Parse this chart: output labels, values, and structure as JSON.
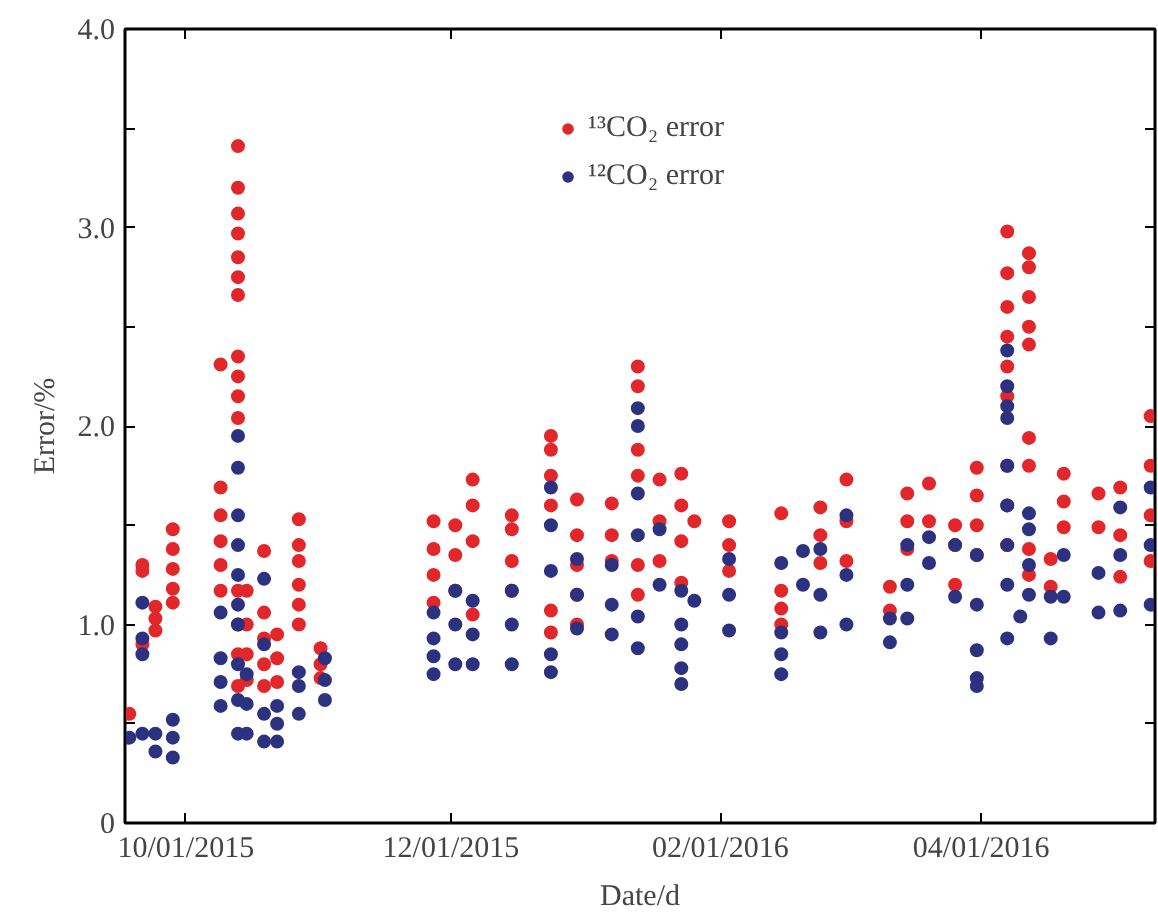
{
  "chart_data": {
    "type": "scatter",
    "xlabel": "Date/d",
    "ylabel": "Error/%",
    "marker": "circle",
    "grid": false,
    "legend": "top",
    "xlim": [
      "2015-09-17",
      "2016-05-11"
    ],
    "ylim": [
      0,
      4.0
    ],
    "xticks": [
      {
        "value": "2015-10-01",
        "label": "10/01/2015"
      },
      {
        "value": "2015-12-01",
        "label": "12/01/2015"
      },
      {
        "value": "2016-02-01",
        "label": "02/01/2016"
      },
      {
        "value": "2016-04-01",
        "label": "04/01/2016"
      }
    ],
    "yticks": [
      0,
      {
        "value": 0.5,
        "label": null
      },
      {
        "value": 1,
        "label": "1.0"
      },
      {
        "value": 1.5,
        "label": null
      },
      {
        "value": 2,
        "label": "2.0"
      },
      {
        "value": 2.5,
        "label": null
      },
      {
        "value": 3,
        "label": "3.0"
      },
      {
        "value": 3.5,
        "label": null
      },
      {
        "value": 4,
        "label": "4.0"
      }
    ],
    "series": [
      {
        "name": "¹³CO₂ error",
        "color": "#e2272b",
        "x": [
          "2015-09-18",
          "2015-09-21",
          "2015-09-21",
          "2015-09-21",
          "2015-09-24",
          "2015-09-24",
          "2015-09-24",
          "2015-09-28",
          "2015-09-28",
          "2015-09-28",
          "2015-09-28",
          "2015-09-28",
          "2015-10-09",
          "2015-10-09",
          "2015-10-09",
          "2015-10-09",
          "2015-10-09",
          "2015-10-09",
          "2015-10-13",
          "2015-10-13",
          "2015-10-13",
          "2015-10-13",
          "2015-10-13",
          "2015-10-13",
          "2015-10-13",
          "2015-10-13",
          "2015-10-13",
          "2015-10-13",
          "2015-10-13",
          "2015-10-13",
          "2015-10-13",
          "2015-10-13",
          "2015-10-13",
          "2015-10-15",
          "2015-10-15",
          "2015-10-15",
          "2015-10-15",
          "2015-10-19",
          "2015-10-19",
          "2015-10-19",
          "2015-10-19",
          "2015-10-19",
          "2015-10-22",
          "2015-10-22",
          "2015-10-22",
          "2015-10-27",
          "2015-10-27",
          "2015-10-27",
          "2015-10-27",
          "2015-10-27",
          "2015-10-27",
          "2015-11-01",
          "2015-11-01",
          "2015-11-01",
          "2015-11-27",
          "2015-11-27",
          "2015-11-27",
          "2015-11-27",
          "2015-12-02",
          "2015-12-02",
          "2015-12-02",
          "2015-12-06",
          "2015-12-06",
          "2015-12-06",
          "2015-12-06",
          "2015-12-15",
          "2015-12-15",
          "2015-12-15",
          "2015-12-15",
          "2015-12-24",
          "2015-12-24",
          "2015-12-24",
          "2015-12-24",
          "2015-12-24",
          "2015-12-24",
          "2015-12-30",
          "2015-12-30",
          "2015-12-30",
          "2015-12-30",
          "2015-12-30",
          "2016-01-07",
          "2016-01-07",
          "2016-01-07",
          "2016-01-13",
          "2016-01-13",
          "2016-01-13",
          "2016-01-13",
          "2016-01-13",
          "2016-01-13",
          "2016-01-18",
          "2016-01-18",
          "2016-01-18",
          "2016-01-23",
          "2016-01-23",
          "2016-01-23",
          "2016-01-23",
          "2016-01-26",
          "2016-02-03",
          "2016-02-03",
          "2016-02-03",
          "2016-02-15",
          "2016-02-15",
          "2016-02-15",
          "2016-02-15",
          "2016-02-24",
          "2016-02-24",
          "2016-02-24",
          "2016-03-01",
          "2016-03-01",
          "2016-03-01",
          "2016-03-11",
          "2016-03-11",
          "2016-03-15",
          "2016-03-15",
          "2016-03-15",
          "2016-03-20",
          "2016-03-20",
          "2016-03-26",
          "2016-03-26",
          "2016-03-26",
          "2016-03-31",
          "2016-03-31",
          "2016-03-31",
          "2016-03-31",
          "2016-04-07",
          "2016-04-07",
          "2016-04-07",
          "2016-04-07",
          "2016-04-07",
          "2016-04-07",
          "2016-04-07",
          "2016-04-07",
          "2016-04-07",
          "2016-04-12",
          "2016-04-12",
          "2016-04-12",
          "2016-04-12",
          "2016-04-12",
          "2016-04-12",
          "2016-04-12",
          "2016-04-12",
          "2016-04-12",
          "2016-04-17",
          "2016-04-17",
          "2016-04-20",
          "2016-04-20",
          "2016-04-20",
          "2016-04-28",
          "2016-04-28",
          "2016-05-03",
          "2016-05-03",
          "2016-05-03",
          "2016-05-10",
          "2016-05-10",
          "2016-05-10",
          "2016-05-10"
        ],
        "values": [
          0.55,
          1.3,
          1.27,
          0.9,
          1.09,
          1.03,
          0.97,
          1.48,
          1.38,
          1.28,
          1.18,
          1.11,
          2.31,
          1.69,
          1.55,
          1.42,
          1.3,
          1.17,
          3.41,
          3.2,
          3.07,
          2.97,
          2.85,
          2.75,
          2.66,
          2.35,
          2.25,
          2.15,
          2.04,
          1.17,
          1.0,
          0.85,
          0.69,
          1.17,
          1.0,
          0.85,
          0.72,
          1.37,
          1.06,
          0.93,
          0.8,
          0.69,
          0.95,
          0.83,
          0.71,
          1.53,
          1.4,
          1.32,
          1.2,
          1.1,
          1.0,
          0.88,
          0.8,
          0.73,
          1.52,
          1.38,
          1.25,
          1.11,
          1.5,
          1.35,
          1.17,
          1.73,
          1.6,
          1.42,
          1.05,
          1.55,
          1.48,
          1.32,
          1.17,
          1.95,
          1.88,
          1.75,
          1.6,
          1.07,
          0.96,
          1.63,
          1.45,
          1.3,
          1.15,
          1.0,
          1.61,
          1.45,
          1.32,
          2.3,
          2.2,
          1.88,
          1.75,
          1.3,
          1.15,
          1.73,
          1.52,
          1.32,
          1.76,
          1.6,
          1.42,
          1.21,
          1.52,
          1.52,
          1.4,
          1.27,
          1.56,
          1.17,
          1.08,
          1.0,
          1.59,
          1.45,
          1.31,
          1.73,
          1.52,
          1.32,
          1.19,
          1.07,
          1.66,
          1.52,
          1.38,
          1.71,
          1.52,
          1.5,
          1.4,
          1.2,
          1.79,
          1.65,
          1.5,
          1.35,
          2.98,
          2.77,
          2.6,
          2.45,
          2.3,
          2.15,
          1.8,
          1.6,
          1.4,
          2.87,
          2.8,
          2.65,
          2.5,
          2.41,
          1.94,
          1.8,
          1.38,
          1.25,
          1.33,
          1.19,
          1.76,
          1.62,
          1.49,
          1.66,
          1.49,
          1.69,
          1.45,
          1.24,
          2.05,
          1.8,
          1.55,
          1.32
        ]
      },
      {
        "name": "¹²CO₂ error",
        "color": "#2c3280",
        "x": [
          "2015-09-18",
          "2015-09-21",
          "2015-09-21",
          "2015-09-21",
          "2015-09-21",
          "2015-09-24",
          "2015-09-24",
          "2015-09-28",
          "2015-09-28",
          "2015-09-28",
          "2015-10-09",
          "2015-10-09",
          "2015-10-09",
          "2015-10-09",
          "2015-10-13",
          "2015-10-13",
          "2015-10-13",
          "2015-10-13",
          "2015-10-13",
          "2015-10-13",
          "2015-10-13",
          "2015-10-13",
          "2015-10-13",
          "2015-10-13",
          "2015-10-15",
          "2015-10-15",
          "2015-10-15",
          "2015-10-19",
          "2015-10-19",
          "2015-10-19",
          "2015-10-19",
          "2015-10-22",
          "2015-10-22",
          "2015-10-22",
          "2015-10-27",
          "2015-10-27",
          "2015-10-27",
          "2015-11-02",
          "2015-11-02",
          "2015-11-02",
          "2015-11-27",
          "2015-11-27",
          "2015-11-27",
          "2015-11-27",
          "2015-12-02",
          "2015-12-02",
          "2015-12-02",
          "2015-12-06",
          "2015-12-06",
          "2015-12-06",
          "2015-12-15",
          "2015-12-15",
          "2015-12-15",
          "2015-12-24",
          "2015-12-24",
          "2015-12-24",
          "2015-12-24",
          "2015-12-24",
          "2015-12-30",
          "2015-12-30",
          "2015-12-30",
          "2016-01-07",
          "2016-01-07",
          "2016-01-07",
          "2016-01-13",
          "2016-01-13",
          "2016-01-13",
          "2016-01-13",
          "2016-01-13",
          "2016-01-13",
          "2016-01-18",
          "2016-01-18",
          "2016-01-23",
          "2016-01-23",
          "2016-01-23",
          "2016-01-23",
          "2016-01-23",
          "2016-01-26",
          "2016-02-03",
          "2016-02-03",
          "2016-02-03",
          "2016-02-15",
          "2016-02-15",
          "2016-02-15",
          "2016-02-15",
          "2016-02-20",
          "2016-02-20",
          "2016-02-24",
          "2016-02-24",
          "2016-02-24",
          "2016-03-01",
          "2016-03-01",
          "2016-03-01",
          "2016-03-11",
          "2016-03-11",
          "2016-03-15",
          "2016-03-15",
          "2016-03-15",
          "2016-03-20",
          "2016-03-20",
          "2016-03-26",
          "2016-03-26",
          "2016-03-31",
          "2016-03-31",
          "2016-03-31",
          "2016-03-31",
          "2016-03-31",
          "2016-04-07",
          "2016-04-07",
          "2016-04-07",
          "2016-04-07",
          "2016-04-07",
          "2016-04-07",
          "2016-04-07",
          "2016-04-07",
          "2016-04-07",
          "2016-04-10",
          "2016-04-12",
          "2016-04-12",
          "2016-04-12",
          "2016-04-12",
          "2016-04-17",
          "2016-04-17",
          "2016-04-20",
          "2016-04-20",
          "2016-04-28",
          "2016-04-28",
          "2016-05-03",
          "2016-05-03",
          "2016-05-03",
          "2016-05-10",
          "2016-05-10",
          "2016-05-10"
        ],
        "values": [
          0.43,
          1.11,
          0.93,
          0.85,
          0.45,
          0.45,
          0.36,
          0.52,
          0.43,
          0.33,
          1.06,
          0.83,
          0.71,
          0.59,
          1.95,
          1.79,
          1.55,
          1.4,
          1.25,
          1.1,
          1.0,
          0.8,
          0.62,
          0.45,
          0.75,
          0.6,
          0.45,
          1.23,
          0.9,
          0.55,
          0.41,
          0.59,
          0.5,
          0.41,
          0.76,
          0.69,
          0.55,
          0.83,
          0.72,
          0.62,
          1.06,
          0.93,
          0.84,
          0.75,
          1.17,
          1.0,
          0.8,
          1.12,
          0.95,
          0.8,
          1.17,
          1.0,
          0.8,
          1.69,
          1.5,
          1.27,
          0.85,
          0.76,
          1.33,
          1.15,
          0.98,
          1.3,
          1.1,
          0.95,
          2.09,
          2.0,
          1.66,
          1.45,
          1.04,
          0.88,
          1.48,
          1.2,
          1.17,
          1.0,
          0.9,
          0.78,
          0.7,
          1.12,
          1.33,
          1.15,
          0.97,
          1.31,
          0.96,
          0.85,
          0.75,
          1.37,
          1.2,
          1.38,
          1.15,
          0.96,
          1.55,
          1.25,
          1.0,
          1.03,
          0.91,
          1.4,
          1.2,
          1.03,
          1.44,
          1.31,
          1.4,
          1.14,
          1.35,
          1.1,
          0.87,
          0.73,
          0.69,
          2.38,
          2.2,
          2.1,
          2.04,
          1.8,
          1.6,
          1.4,
          1.2,
          0.93,
          1.04,
          1.56,
          1.48,
          1.3,
          1.15,
          1.14,
          0.93,
          1.35,
          1.14,
          1.26,
          1.06,
          1.59,
          1.35,
          1.07,
          1.69,
          1.4,
          1.1
        ]
      }
    ]
  }
}
